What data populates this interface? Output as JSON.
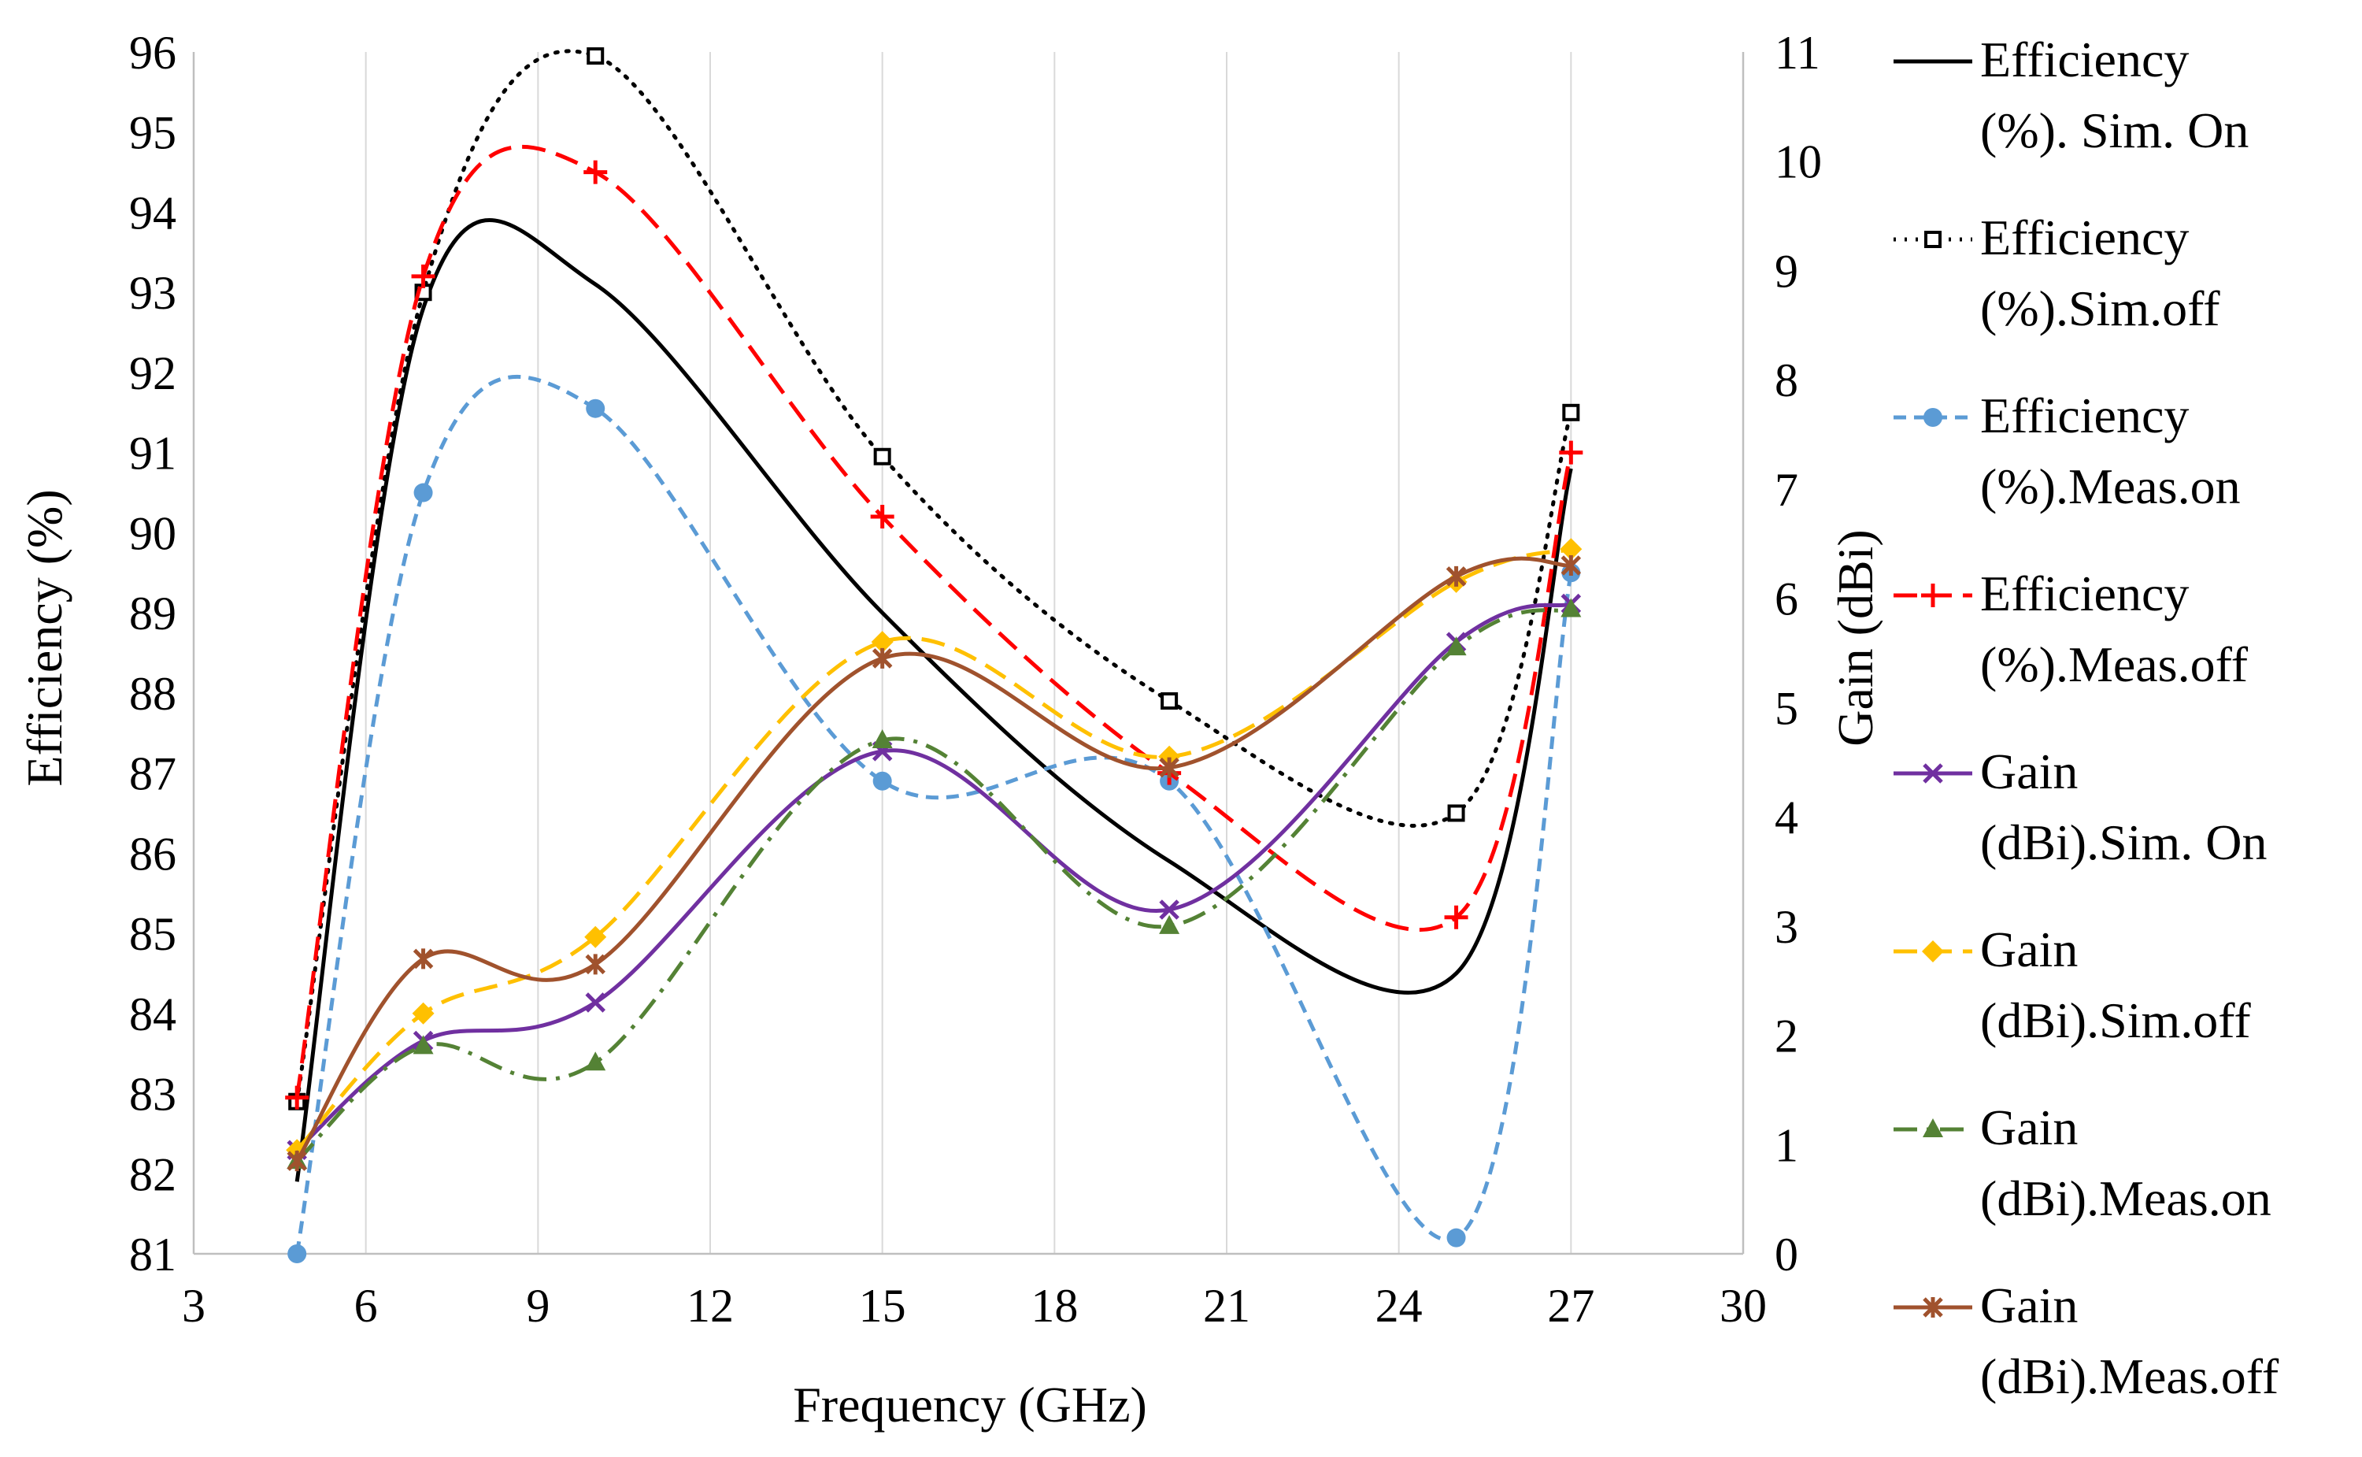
{
  "chart_data": {
    "type": "line",
    "title": "",
    "xlabel": "Frequency (GHz)",
    "ylabel_left": "Efficiency (%)",
    "ylabel_right": "Gain (dBi)",
    "xlim": [
      3,
      30
    ],
    "xticks": [
      3,
      6,
      9,
      12,
      15,
      18,
      21,
      24,
      27,
      30
    ],
    "ylim_left": [
      81,
      96
    ],
    "yticks_left": [
      81,
      82,
      83,
      84,
      85,
      86,
      87,
      88,
      89,
      90,
      91,
      92,
      93,
      94,
      95,
      96
    ],
    "ylim_right": [
      0,
      11
    ],
    "yticks_right": [
      0,
      1,
      2,
      3,
      4,
      5,
      6,
      7,
      8,
      9,
      10,
      11
    ],
    "grid": "vertical",
    "legend_position": "right",
    "x": [
      4.8,
      7,
      10,
      15,
      20,
      25,
      27
    ],
    "series": [
      {
        "name": "Efficiency (%). Sim. On",
        "legend_lines": [
          "Efficiency",
          "(%). Sim. On"
        ],
        "axis": "left",
        "color": "#000000",
        "dash": "solid",
        "marker": "none",
        "values": [
          81.9,
          92.8,
          93.1,
          89.0,
          85.9,
          84.5,
          90.8
        ]
      },
      {
        "name": "Efficiency (%).Sim.off",
        "legend_lines": [
          "Efficiency",
          "(%).Sim.off"
        ],
        "axis": "left",
        "color": "#000000",
        "dash": "dot",
        "marker": "square",
        "values": [
          82.9,
          93.0,
          95.95,
          90.95,
          87.9,
          86.5,
          91.5
        ]
      },
      {
        "name": "Efficiency (%).Meas.on",
        "legend_lines": [
          "Efficiency",
          "(%).Meas.on"
        ],
        "axis": "left",
        "color": "#5B9BD5",
        "dash": "dash",
        "marker": "circle",
        "values": [
          81.0,
          90.5,
          91.55,
          86.9,
          86.9,
          81.2,
          89.5
        ]
      },
      {
        "name": "Efficiency (%).Meas.off",
        "legend_lines": [
          "Efficiency",
          "(%).Meas.off"
        ],
        "axis": "left",
        "color": "#FF0000",
        "dash": "longdash",
        "marker": "plus",
        "values": [
          82.95,
          93.2,
          94.5,
          90.2,
          87.0,
          85.2,
          91.0
        ]
      },
      {
        "name": "Gain (dBi).Sim. On",
        "legend_lines": [
          "Gain",
          "(dBi).Sim. On"
        ],
        "axis": "right",
        "color": "#7030A0",
        "dash": "solid",
        "marker": "x",
        "values": [
          0.95,
          1.95,
          2.3,
          4.6,
          3.15,
          5.6,
          5.95
        ]
      },
      {
        "name": "Gain (dBi).Sim.off",
        "legend_lines": [
          "Gain",
          "(dBi).Sim.off"
        ],
        "axis": "right",
        "color": "#FFC000",
        "dash": "longdash",
        "marker": "diamond",
        "values": [
          0.95,
          2.2,
          2.9,
          5.6,
          4.55,
          6.15,
          6.45
        ]
      },
      {
        "name": "Gain (dBi).Meas.on",
        "legend_lines": [
          "Gain",
          "(dBi).Meas.on"
        ],
        "axis": "right",
        "color": "#548235",
        "dash": "dashdot",
        "marker": "triangle",
        "values": [
          0.85,
          1.9,
          1.75,
          4.7,
          3.0,
          5.55,
          5.9
        ]
      },
      {
        "name": "Gain (dBi).Meas.off",
        "legend_lines": [
          "Gain",
          "(dBi).Meas.off"
        ],
        "axis": "right",
        "color": "#A0522D",
        "dash": "solid",
        "marker": "star",
        "values": [
          0.85,
          2.7,
          2.65,
          5.45,
          4.45,
          6.2,
          6.3
        ]
      }
    ]
  }
}
